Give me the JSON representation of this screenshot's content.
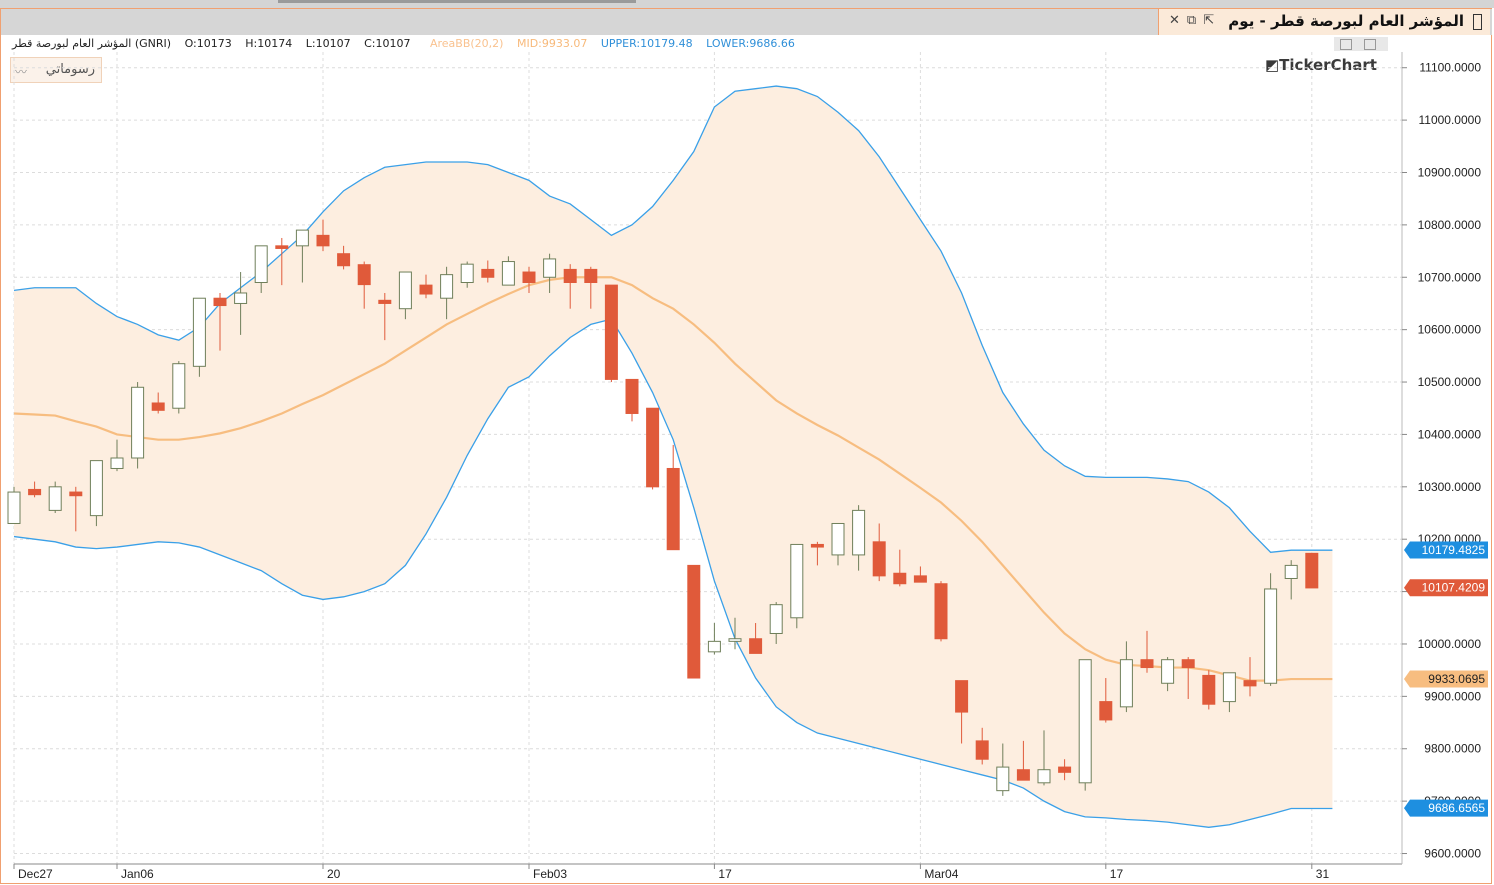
{
  "window": {
    "title": "المؤشر العام لبورصة قطر - يوم",
    "icons": [
      "close-icon",
      "restore-icon",
      "detach-icon"
    ]
  },
  "info_bar": {
    "symbol": "المؤشر العام لبورصة قطر (GNRI)",
    "open": "O:10173",
    "high": "H:10174",
    "low": "L:10107",
    "close": "C:10107",
    "indicator": "AreaBB(20,2)",
    "mid": "MID:9933.07",
    "upper": "UPPER:10179.48",
    "lower": "LOWER:9686.66"
  },
  "drawings_button": {
    "label": "رسوماتي",
    "icon": "drawing-line-icon"
  },
  "logo": "◩TickerChart",
  "colors": {
    "up_fill": "#ffffff",
    "up_stroke": "#6f7f5a",
    "down": "#e05a3a",
    "band_fill": "#fdeee0",
    "band_line": "#3aa0e8",
    "mid_line": "#f7bd80",
    "grid": "#dcdcdc"
  },
  "chart_data": {
    "type": "candlestick",
    "y_range": [
      9580,
      11130
    ],
    "y_ticks": [
      "9600.0000",
      "9700.0000",
      "9800.0000",
      "9900.0000",
      "10000.0000",
      "10100.0000",
      "10200.0000",
      "10300.0000",
      "10400.0000",
      "10500.0000",
      "10600.0000",
      "10700.0000",
      "10800.0000",
      "10900.0000",
      "11000.0000",
      "11100.0000"
    ],
    "x_labels": [
      {
        "index": 0,
        "label": "Dec27"
      },
      {
        "index": 5,
        "label": "Jan06"
      },
      {
        "index": 15,
        "label": "20"
      },
      {
        "index": 25,
        "label": "Feb03"
      },
      {
        "index": 34,
        "label": "17"
      },
      {
        "index": 44,
        "label": "Mar04"
      },
      {
        "index": 53,
        "label": "17"
      },
      {
        "index": 63,
        "label": "31"
      }
    ],
    "candles": [
      {
        "o": 10230,
        "h": 10300,
        "l": 10230,
        "c": 10290
      },
      {
        "o": 10295,
        "h": 10310,
        "l": 10280,
        "c": 10285
      },
      {
        "o": 10255,
        "h": 10310,
        "l": 10250,
        "c": 10300
      },
      {
        "o": 10290,
        "h": 10300,
        "l": 10215,
        "c": 10283
      },
      {
        "o": 10245,
        "h": 10350,
        "l": 10225,
        "c": 10350
      },
      {
        "o": 10335,
        "h": 10390,
        "l": 10330,
        "c": 10355
      },
      {
        "o": 10355,
        "h": 10500,
        "l": 10335,
        "c": 10490
      },
      {
        "o": 10460,
        "h": 10480,
        "l": 10440,
        "c": 10446
      },
      {
        "o": 10450,
        "h": 10540,
        "l": 10440,
        "c": 10535
      },
      {
        "o": 10530,
        "h": 10660,
        "l": 10510,
        "c": 10660
      },
      {
        "o": 10660,
        "h": 10670,
        "l": 10560,
        "c": 10646
      },
      {
        "o": 10650,
        "h": 10710,
        "l": 10590,
        "c": 10670
      },
      {
        "o": 10690,
        "h": 10760,
        "l": 10670,
        "c": 10760
      },
      {
        "o": 10760,
        "h": 10775,
        "l": 10685,
        "c": 10755
      },
      {
        "o": 10760,
        "h": 10790,
        "l": 10690,
        "c": 10790
      },
      {
        "o": 10780,
        "h": 10810,
        "l": 10750,
        "c": 10760
      },
      {
        "o": 10745,
        "h": 10760,
        "l": 10715,
        "c": 10722
      },
      {
        "o": 10724,
        "h": 10730,
        "l": 10640,
        "c": 10686
      },
      {
        "o": 10656,
        "h": 10670,
        "l": 10580,
        "c": 10650
      },
      {
        "o": 10640,
        "h": 10710,
        "l": 10620,
        "c": 10710
      },
      {
        "o": 10685,
        "h": 10705,
        "l": 10660,
        "c": 10668
      },
      {
        "o": 10660,
        "h": 10720,
        "l": 10620,
        "c": 10705
      },
      {
        "o": 10690,
        "h": 10730,
        "l": 10680,
        "c": 10725
      },
      {
        "o": 10715,
        "h": 10732,
        "l": 10690,
        "c": 10700
      },
      {
        "o": 10685,
        "h": 10740,
        "l": 10685,
        "c": 10730
      },
      {
        "o": 10710,
        "h": 10720,
        "l": 10670,
        "c": 10690
      },
      {
        "o": 10700,
        "h": 10745,
        "l": 10670,
        "c": 10735
      },
      {
        "o": 10715,
        "h": 10725,
        "l": 10640,
        "c": 10690
      },
      {
        "o": 10715,
        "h": 10720,
        "l": 10640,
        "c": 10690
      },
      {
        "o": 10685,
        "h": 10685,
        "l": 10500,
        "c": 10505
      },
      {
        "o": 10505,
        "h": 10505,
        "l": 10425,
        "c": 10440
      },
      {
        "o": 10450,
        "h": 10450,
        "l": 10295,
        "c": 10300
      },
      {
        "o": 10335,
        "h": 10380,
        "l": 10180,
        "c": 10180
      },
      {
        "o": 10150,
        "h": 10150,
        "l": 9935,
        "c": 9935
      },
      {
        "o": 9985,
        "h": 10040,
        "l": 9980,
        "c": 10005
      },
      {
        "o": 10005,
        "h": 10050,
        "l": 9990,
        "c": 10010
      },
      {
        "o": 10010,
        "h": 10040,
        "l": 9982,
        "c": 9982
      },
      {
        "o": 10020,
        "h": 10080,
        "l": 10000,
        "c": 10075
      },
      {
        "o": 10050,
        "h": 10190,
        "l": 10030,
        "c": 10190
      },
      {
        "o": 10190,
        "h": 10195,
        "l": 10150,
        "c": 10185
      },
      {
        "o": 10170,
        "h": 10230,
        "l": 10150,
        "c": 10230
      },
      {
        "o": 10170,
        "h": 10265,
        "l": 10140,
        "c": 10255
      },
      {
        "o": 10195,
        "h": 10230,
        "l": 10120,
        "c": 10130
      },
      {
        "o": 10135,
        "h": 10180,
        "l": 10110,
        "c": 10115
      },
      {
        "o": 10130,
        "h": 10148,
        "l": 10120,
        "c": 10118
      },
      {
        "o": 10115,
        "h": 10120,
        "l": 10005,
        "c": 10010
      },
      {
        "o": 9930,
        "h": 9930,
        "l": 9810,
        "c": 9870
      },
      {
        "o": 9815,
        "h": 9840,
        "l": 9770,
        "c": 9780
      },
      {
        "o": 9720,
        "h": 9810,
        "l": 9710,
        "c": 9765
      },
      {
        "o": 9760,
        "h": 9815,
        "l": 9740,
        "c": 9740
      },
      {
        "o": 9735,
        "h": 9835,
        "l": 9730,
        "c": 9760
      },
      {
        "o": 9765,
        "h": 9780,
        "l": 9740,
        "c": 9755
      },
      {
        "o": 9735,
        "h": 9970,
        "l": 9720,
        "c": 9970
      },
      {
        "o": 9890,
        "h": 9935,
        "l": 9850,
        "c": 9855
      },
      {
        "o": 9880,
        "h": 10005,
        "l": 9870,
        "c": 9970
      },
      {
        "o": 9970,
        "h": 10025,
        "l": 9945,
        "c": 9955
      },
      {
        "o": 9925,
        "h": 9975,
        "l": 9910,
        "c": 9970
      },
      {
        "o": 9970,
        "h": 9975,
        "l": 9895,
        "c": 9955
      },
      {
        "o": 9940,
        "h": 9950,
        "l": 9875,
        "c": 9885
      },
      {
        "o": 9890,
        "h": 9945,
        "l": 9870,
        "c": 9945
      },
      {
        "o": 9930,
        "h": 9975,
        "l": 9900,
        "c": 9920
      },
      {
        "o": 9925,
        "h": 10135,
        "l": 9920,
        "c": 10105
      },
      {
        "o": 10125,
        "h": 10160,
        "l": 10085,
        "c": 10150
      },
      {
        "o": 10173,
        "h": 10174,
        "l": 10107,
        "c": 10107
      }
    ],
    "upper": [
      10675,
      10680,
      10680,
      10680,
      10650,
      10625,
      10610,
      10590,
      10580,
      10605,
      10650,
      10680,
      10710,
      10745,
      10780,
      10825,
      10865,
      10890,
      10910,
      10915,
      10920,
      10920,
      10920,
      10915,
      10900,
      10885,
      10855,
      10840,
      10810,
      10780,
      10800,
      10835,
      10885,
      10940,
      11025,
      11055,
      11060,
      11065,
      11060,
      11045,
      11015,
      10980,
      10930,
      10870,
      10810,
      10750,
      10670,
      10570,
      10480,
      10420,
      10370,
      10340,
      10320,
      10318,
      10318,
      10318,
      10315,
      10310,
      10290,
      10260,
      10215,
      10175,
      10179,
      10179,
      10179
    ],
    "mid": [
      10440,
      10438,
      10436,
      10425,
      10415,
      10400,
      10395,
      10390,
      10390,
      10395,
      10402,
      10412,
      10425,
      10440,
      10458,
      10475,
      10495,
      10515,
      10535,
      10560,
      10585,
      10610,
      10630,
      10650,
      10668,
      10685,
      10695,
      10700,
      10700,
      10700,
      10685,
      10660,
      10640,
      10610,
      10575,
      10535,
      10500,
      10465,
      10440,
      10418,
      10398,
      10375,
      10352,
      10325,
      10298,
      10270,
      10235,
      10195,
      10150,
      10105,
      10060,
      10020,
      9990,
      9970,
      9960,
      9958,
      9955,
      9955,
      9950,
      9940,
      9930,
      9930,
      9933,
      9933,
      9933
    ],
    "lower": [
      10205,
      10200,
      10195,
      10185,
      10182,
      10185,
      10190,
      10195,
      10193,
      10185,
      10170,
      10155,
      10140,
      10115,
      10093,
      10085,
      10090,
      10100,
      10115,
      10150,
      10210,
      10280,
      10360,
      10430,
      10490,
      10510,
      10550,
      10585,
      10610,
      10620,
      10555,
      10480,
      10390,
      10260,
      10120,
      10010,
      9935,
      9880,
      9850,
      9830,
      9820,
      9810,
      9800,
      9790,
      9780,
      9770,
      9760,
      9750,
      9740,
      9725,
      9700,
      9680,
      9670,
      9668,
      9665,
      9663,
      9660,
      9655,
      9650,
      9655,
      9665,
      9675,
      9686,
      9686,
      9686
    ],
    "price_tags": [
      {
        "label": "10179.4825",
        "color": "#1e8fe0",
        "value": 10179.48
      },
      {
        "label": "10107.4209",
        "color": "#e05a3a",
        "value": 10107.42
      },
      {
        "label": "9933.0695",
        "color": "#f7bd80",
        "value": 9933.07
      },
      {
        "label": "9686.6565",
        "color": "#1e8fe0",
        "value": 9686.66
      }
    ]
  }
}
